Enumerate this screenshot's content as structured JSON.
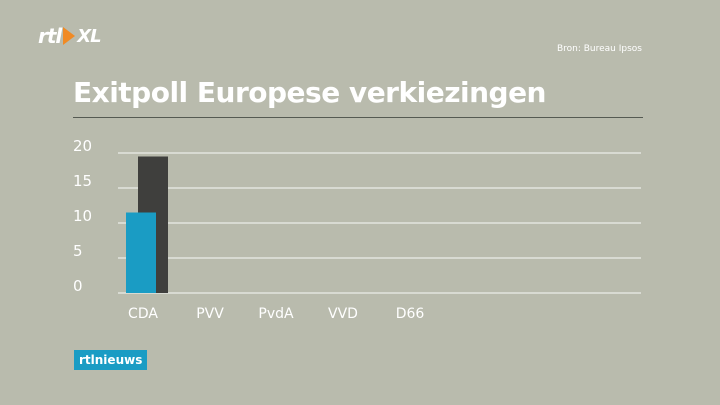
{
  "brand": {
    "logo_text_rtl": "rtl",
    "logo_text_xl": "XL",
    "badge": "rtlnieuws"
  },
  "source": "Bron: Bureau Ipsos",
  "chart_data": {
    "type": "bar",
    "title": "Exitpoll Europese verkiezingen",
    "categories": [
      "CDA",
      "PVV",
      "PvdA",
      "VVD",
      "D66"
    ],
    "series": [
      {
        "color": "#1a9cc4",
        "values": [
          11.5,
          null,
          null,
          null,
          null
        ]
      },
      {
        "color": "#3f3f3d",
        "values": [
          19.5,
          null,
          null,
          null,
          null
        ]
      }
    ],
    "yticks": [
      0,
      5,
      10,
      15,
      20
    ],
    "ylim": [
      0,
      20
    ],
    "grid": true
  }
}
